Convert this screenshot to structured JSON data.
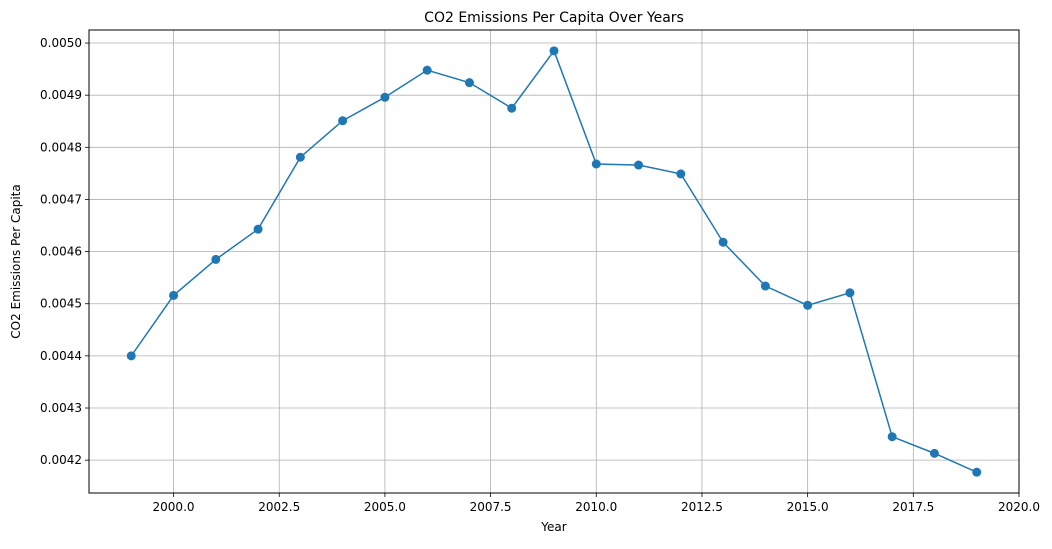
{
  "chart_data": {
    "type": "line",
    "title": "CO2 Emissions Per Capita Over Years",
    "xlabel": "Year",
    "ylabel": "CO2 Emissions Per Capita",
    "xlim": [
      1998,
      2020
    ],
    "ylim": [
      0.004137,
      0.005025
    ],
    "grid": true,
    "x_ticks": [
      "2000.0",
      "2002.5",
      "2005.0",
      "2007.5",
      "2010.0",
      "2012.5",
      "2015.0",
      "2017.5",
      "2020.0"
    ],
    "y_ticks": [
      "0.0042",
      "0.0043",
      "0.0044",
      "0.0045",
      "0.0046",
      "0.0047",
      "0.0048",
      "0.0049",
      "0.0050"
    ],
    "series": [
      {
        "color": "#1f77b4",
        "marker": "circle",
        "x": [
          1999,
          2000,
          2001,
          2002,
          2003,
          2004,
          2005,
          2006,
          2007,
          2008,
          2009,
          2010,
          2011,
          2012,
          2013,
          2014,
          2015,
          2016,
          2017,
          2018,
          2019
        ],
        "y": [
          0.0044,
          0.004516,
          0.004585,
          0.004643,
          0.004781,
          0.004851,
          0.004896,
          0.004948,
          0.004924,
          0.004875,
          0.004985,
          0.004768,
          0.004766,
          0.004749,
          0.004618,
          0.004534,
          0.004497,
          0.004521,
          0.004245,
          0.004213,
          0.004177
        ]
      }
    ]
  }
}
